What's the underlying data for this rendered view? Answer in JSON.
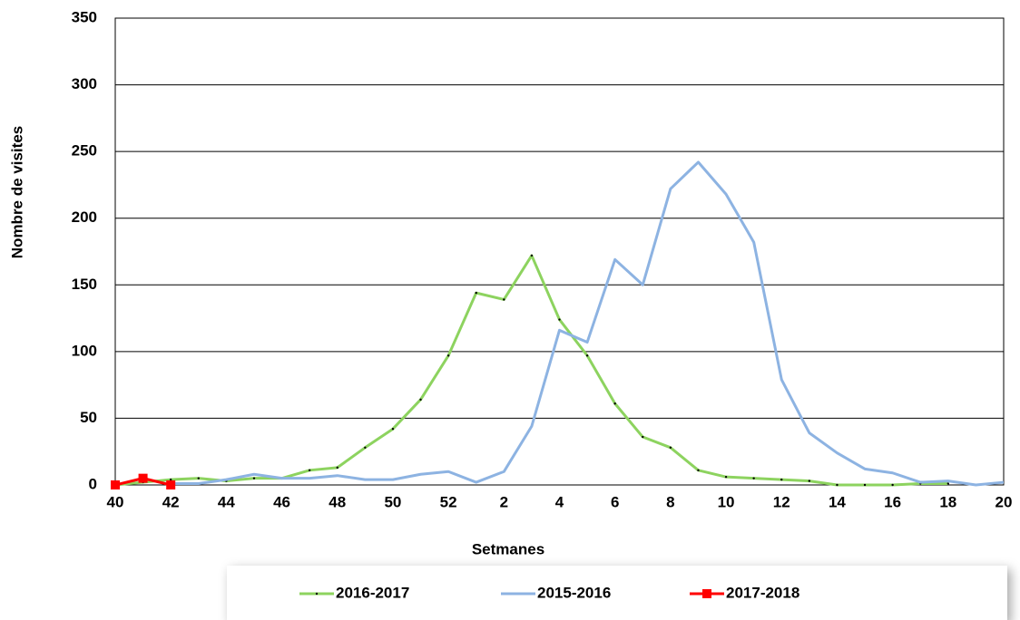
{
  "chart_data": {
    "type": "line",
    "x_label": "Setmanes",
    "y_label": "Nombre de visites",
    "categories": [
      "40",
      null,
      "42",
      null,
      "44",
      null,
      "46",
      null,
      "48",
      null,
      "50",
      null,
      "52",
      null,
      "2",
      null,
      "4",
      null,
      "6",
      null,
      "8",
      null,
      "10",
      null,
      "12",
      null,
      "14",
      null,
      "16",
      null,
      "18",
      null,
      "20"
    ],
    "series": [
      {
        "name": "2016-2017",
        "color": "#8dd35f",
        "marker": "dot",
        "values": [
          0,
          2,
          4,
          5,
          3,
          5,
          5,
          11,
          13,
          28,
          42,
          64,
          97,
          144,
          139,
          172,
          124,
          97,
          61,
          36,
          28,
          11,
          6,
          5,
          4,
          3,
          0,
          0,
          0,
          1,
          1,
          null,
          null
        ]
      },
      {
        "name": "2015-2016",
        "color": "#8db3e2",
        "marker": "none",
        "values": [
          null,
          null,
          1,
          1,
          4,
          8,
          5,
          5,
          7,
          4,
          4,
          8,
          10,
          2,
          10,
          44,
          116,
          107,
          169,
          150,
          222,
          242,
          218,
          182,
          79,
          39,
          24,
          12,
          9,
          2,
          3,
          0,
          2
        ]
      },
      {
        "name": "2017-2018",
        "color": "#ff0000",
        "marker": "square",
        "values": [
          0,
          5,
          0,
          null,
          null,
          null,
          null,
          null,
          null,
          null,
          null,
          null,
          null,
          null,
          null,
          null,
          null,
          null,
          null,
          null,
          null,
          null,
          null,
          null,
          null,
          null,
          null,
          null,
          null,
          null,
          null,
          null,
          null
        ]
      }
    ],
    "ylim": [
      0,
      350
    ],
    "yticks": [
      0,
      50,
      100,
      150,
      200,
      250,
      300,
      350
    ],
    "grid": true,
    "legend": "bottom"
  }
}
